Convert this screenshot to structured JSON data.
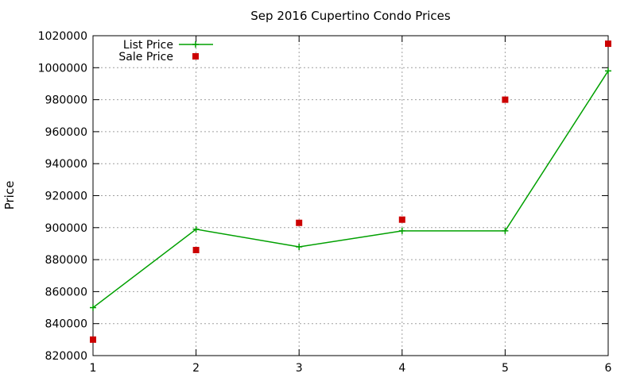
{
  "chart_data": {
    "type": "line",
    "title": "Sep 2016 Cupertino Condo Prices",
    "xlabel": "",
    "ylabel": "Price",
    "x": [
      1,
      2,
      3,
      4,
      5,
      6
    ],
    "xlim": [
      1,
      6
    ],
    "ylim": [
      820000,
      1020000
    ],
    "xticks": [
      1,
      2,
      3,
      4,
      5,
      6
    ],
    "yticks": [
      820000,
      840000,
      860000,
      880000,
      900000,
      920000,
      940000,
      960000,
      980000,
      1000000,
      1020000
    ],
    "grid": true,
    "legend_position": "top-left",
    "series": [
      {
        "name": "List Price",
        "kind": "line",
        "marker": "plus",
        "color": "#00a000",
        "values": [
          850000,
          899000,
          888000,
          898000,
          898000,
          998000
        ]
      },
      {
        "name": "Sale Price",
        "kind": "scatter",
        "marker": "square",
        "color": "#cc0000",
        "values": [
          830000,
          886000,
          903000,
          905000,
          980000,
          1015000
        ]
      }
    ]
  }
}
